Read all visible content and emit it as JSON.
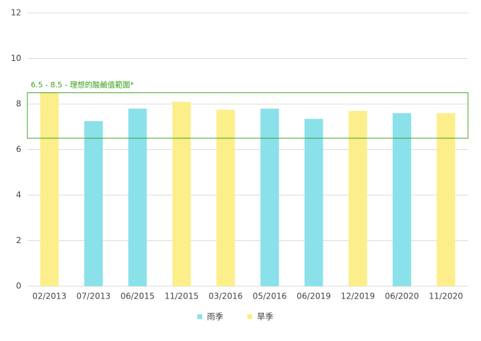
{
  "chart_data": {
    "type": "bar",
    "categories": [
      "02/2013",
      "07/2013",
      "06/2015",
      "11/2015",
      "03/2016",
      "05/2016",
      "06/2019",
      "12/2019",
      "06/2020",
      "11/2020"
    ],
    "series": [
      {
        "name": "雨季",
        "color": "#8ae1ea",
        "values": [
          null,
          7.25,
          7.8,
          null,
          null,
          7.8,
          7.35,
          null,
          7.6,
          null
        ]
      },
      {
        "name": "旱季",
        "color": "#fcee8a",
        "values": [
          8.5,
          null,
          null,
          8.1,
          7.75,
          null,
          null,
          7.7,
          null,
          7.6
        ]
      }
    ],
    "ylim": [
      0,
      12
    ],
    "yticks": [
      0,
      2,
      4,
      6,
      8,
      10,
      12
    ],
    "grid": true,
    "band": {
      "range": [
        6.5,
        8.5
      ],
      "label": "6.5 - 8.5 - 理想的酸鹼值範圍*",
      "color": "#3aa01c"
    },
    "legend": "bottom"
  }
}
